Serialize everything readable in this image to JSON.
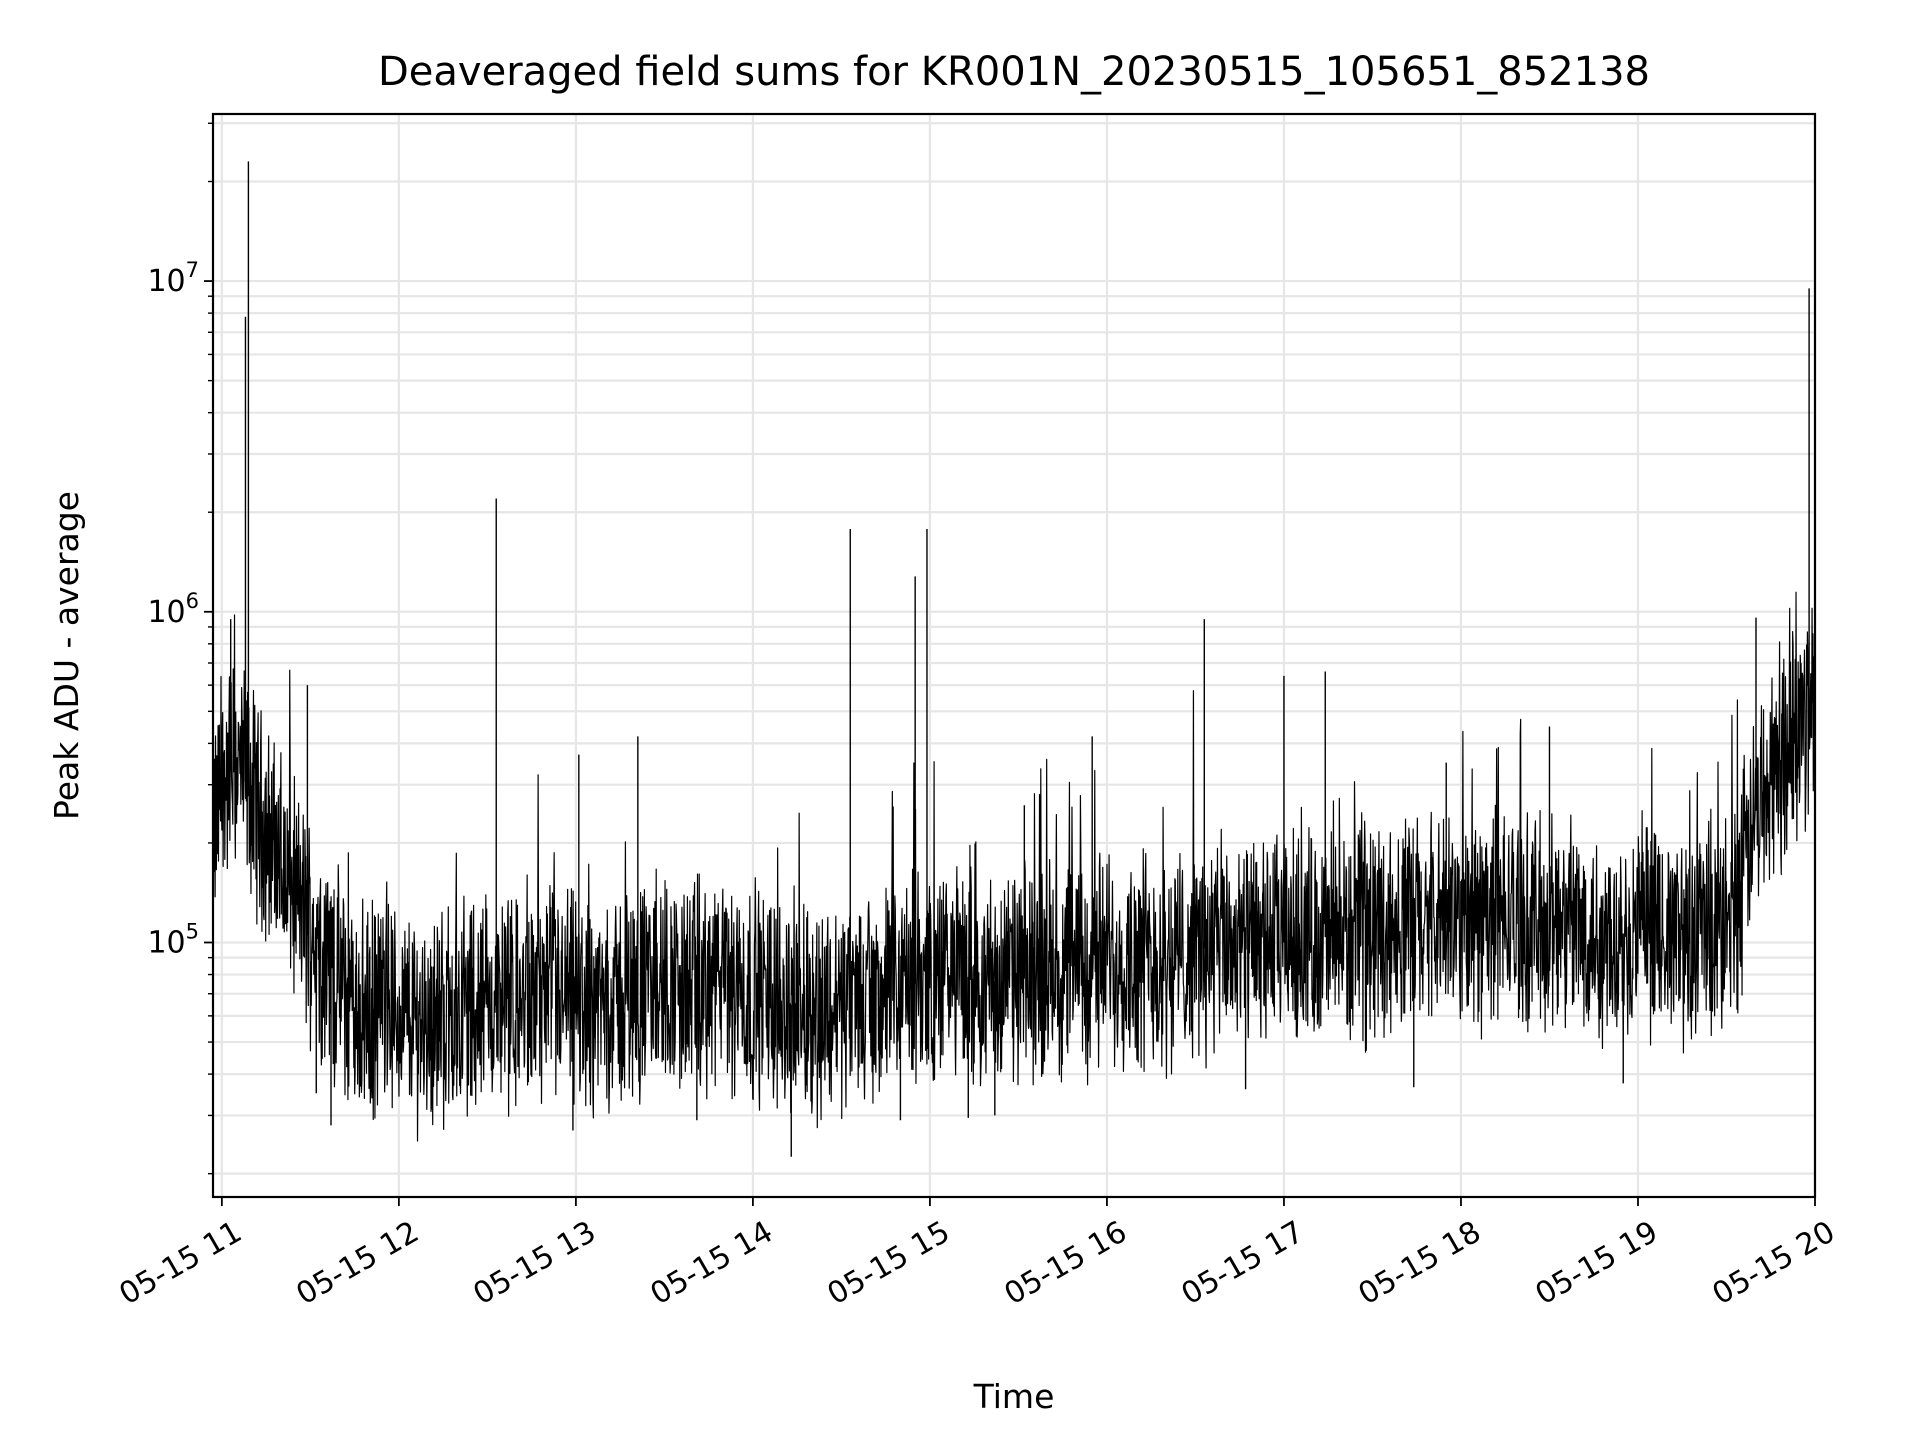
{
  "chart_data": {
    "type": "line",
    "title": "Deaveraged field sums for KR001N_20230515_105651_852138",
    "xlabel": "Time",
    "ylabel": "Peak ADU - average",
    "yscale": "log",
    "grid": true,
    "line_color": "#000000",
    "grid_color": "#e6e6e6",
    "xlim": [
      "2023-05-15 10:57",
      "2023-05-15 20:00"
    ],
    "ylim": [
      17000,
      32000000
    ],
    "x_ticks": [
      {
        "time": "2023-05-15 11:00",
        "label": "05-15 11"
      },
      {
        "time": "2023-05-15 12:00",
        "label": "05-15 12"
      },
      {
        "time": "2023-05-15 13:00",
        "label": "05-15 13"
      },
      {
        "time": "2023-05-15 14:00",
        "label": "05-15 14"
      },
      {
        "time": "2023-05-15 15:00",
        "label": "05-15 15"
      },
      {
        "time": "2023-05-15 16:00",
        "label": "05-15 16"
      },
      {
        "time": "2023-05-15 17:00",
        "label": "05-15 17"
      },
      {
        "time": "2023-05-15 18:00",
        "label": "05-15 18"
      },
      {
        "time": "2023-05-15 19:00",
        "label": "05-15 19"
      },
      {
        "time": "2023-05-15 20:00",
        "label": "05-15 20"
      }
    ],
    "y_ticks": [
      {
        "value": 100000,
        "base": "10",
        "exponent": "5"
      },
      {
        "value": 1000000,
        "base": "10",
        "exponent": "6"
      },
      {
        "value": 10000000,
        "base": "10",
        "exponent": "7"
      }
    ],
    "series": [
      {
        "x": [
          "2023-05-15 10:57",
          "2023-05-15 11:00",
          "2023-05-15 11:05",
          "2023-05-15 11:10",
          "2023-05-15 11:15",
          "2023-05-15 11:20",
          "2023-05-15 11:25",
          "2023-05-15 11:30",
          "2023-05-15 11:35",
          "2023-05-15 11:40",
          "2023-05-15 11:45",
          "2023-05-15 11:50",
          "2023-05-15 11:55",
          "2023-05-15 12:00",
          "2023-05-15 12:10",
          "2023-05-15 12:20",
          "2023-05-15 12:30",
          "2023-05-15 12:40",
          "2023-05-15 12:50",
          "2023-05-15 13:00",
          "2023-05-15 13:10",
          "2023-05-15 13:20",
          "2023-05-15 13:30",
          "2023-05-15 13:40",
          "2023-05-15 13:50",
          "2023-05-15 14:00",
          "2023-05-15 14:10",
          "2023-05-15 14:20",
          "2023-05-15 14:30",
          "2023-05-15 14:40",
          "2023-05-15 14:50",
          "2023-05-15 15:00",
          "2023-05-15 15:10",
          "2023-05-15 15:20",
          "2023-05-15 15:30",
          "2023-05-15 15:40",
          "2023-05-15 15:50",
          "2023-05-15 16:00",
          "2023-05-15 16:10",
          "2023-05-15 16:20",
          "2023-05-15 16:30",
          "2023-05-15 16:40",
          "2023-05-15 16:50",
          "2023-05-15 17:00",
          "2023-05-15 17:10",
          "2023-05-15 17:20",
          "2023-05-15 17:30",
          "2023-05-15 17:40",
          "2023-05-15 17:50",
          "2023-05-15 18:00",
          "2023-05-15 18:10",
          "2023-05-15 18:20",
          "2023-05-15 18:30",
          "2023-05-15 18:40",
          "2023-05-15 18:50",
          "2023-05-15 19:00",
          "2023-05-15 19:10",
          "2023-05-15 19:20",
          "2023-05-15 19:30",
          "2023-05-15 19:35",
          "2023-05-15 19:40",
          "2023-05-15 19:45",
          "2023-05-15 19:50",
          "2023-05-15 19:55",
          "2023-05-15 20:00"
        ],
        "y": [
          200000,
          300000,
          350000,
          280000,
          220000,
          170000,
          140000,
          110000,
          90000,
          75000,
          62000,
          60000,
          65000,
          60000,
          58000,
          62000,
          65000,
          63000,
          68000,
          66000,
          64000,
          70000,
          75000,
          72000,
          74000,
          70000,
          66000,
          62000,
          65000,
          68000,
          72000,
          78000,
          80000,
          76000,
          78000,
          82000,
          85000,
          90000,
          92000,
          88000,
          95000,
          98000,
          96000,
          100000,
          105000,
          102000,
          110000,
          115000,
          112000,
          118000,
          120000,
          115000,
          112000,
          110000,
          105000,
          108000,
          100000,
          105000,
          110000,
          150000,
          250000,
          320000,
          380000,
          450000,
          600000
        ]
      }
    ],
    "spikes": [
      {
        "time": "2023-05-15 11:09",
        "value": 23000000
      },
      {
        "time": "2023-05-15 11:08",
        "value": 7800000
      },
      {
        "time": "2023-05-15 11:03",
        "value": 950000
      },
      {
        "time": "2023-05-15 11:29",
        "value": 600000
      },
      {
        "time": "2023-05-15 12:33",
        "value": 2200000
      },
      {
        "time": "2023-05-15 13:01",
        "value": 370000
      },
      {
        "time": "2023-05-15 13:21",
        "value": 420000
      },
      {
        "time": "2023-05-15 14:33",
        "value": 1780000
      },
      {
        "time": "2023-05-15 14:55",
        "value": 1280000
      },
      {
        "time": "2023-05-15 14:59",
        "value": 1780000
      },
      {
        "time": "2023-05-15 15:32",
        "value": 260000
      },
      {
        "time": "2023-05-15 15:55",
        "value": 420000
      },
      {
        "time": "2023-05-15 16:33",
        "value": 950000
      },
      {
        "time": "2023-05-15 17:00",
        "value": 640000
      },
      {
        "time": "2023-05-15 17:14",
        "value": 660000
      },
      {
        "time": "2023-05-15 17:55",
        "value": 350000
      },
      {
        "time": "2023-05-15 18:30",
        "value": 450000
      },
      {
        "time": "2023-05-15 19:40",
        "value": 960000
      },
      {
        "time": "2023-05-15 19:58",
        "value": 9500000
      }
    ],
    "dips": [
      {
        "time": "2023-05-15 11:32",
        "value": 35000
      },
      {
        "time": "2023-05-15 11:37",
        "value": 28000
      },
      {
        "time": "2023-05-15 12:59",
        "value": 27000
      },
      {
        "time": "2023-05-15 13:41",
        "value": 29000
      },
      {
        "time": "2023-05-15 14:13",
        "value": 22500
      },
      {
        "time": "2023-05-15 14:50",
        "value": 29000
      },
      {
        "time": "2023-05-15 15:13",
        "value": 29500
      },
      {
        "time": "2023-05-15 15:22",
        "value": 30000
      },
      {
        "time": "2023-05-15 16:47",
        "value": 36000
      },
      {
        "time": "2023-05-15 17:44",
        "value": 36500
      },
      {
        "time": "2023-05-15 18:55",
        "value": 37500
      }
    ]
  }
}
